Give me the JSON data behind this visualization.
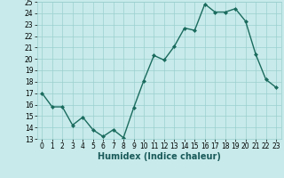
{
  "x": [
    0,
    1,
    2,
    3,
    4,
    5,
    6,
    7,
    8,
    9,
    10,
    11,
    12,
    13,
    14,
    15,
    16,
    17,
    18,
    19,
    20,
    21,
    22,
    23
  ],
  "y": [
    17.0,
    15.8,
    15.8,
    14.2,
    14.9,
    13.8,
    13.2,
    13.8,
    13.1,
    15.7,
    18.1,
    20.3,
    19.9,
    21.1,
    22.7,
    22.5,
    24.8,
    24.1,
    24.1,
    24.4,
    23.3,
    20.4,
    18.2,
    17.5
  ],
  "line_color": "#1a6b5e",
  "marker": "D",
  "marker_size": 2.0,
  "bg_color": "#c8eaea",
  "grid_color": "#9bcfcf",
  "xlabel": "Humidex (Indice chaleur)",
  "ylim": [
    13,
    25
  ],
  "xlim": [
    -0.5,
    23.5
  ],
  "yticks": [
    13,
    14,
    15,
    16,
    17,
    18,
    19,
    20,
    21,
    22,
    23,
    24,
    25
  ],
  "xticks": [
    0,
    1,
    2,
    3,
    4,
    5,
    6,
    7,
    8,
    9,
    10,
    11,
    12,
    13,
    14,
    15,
    16,
    17,
    18,
    19,
    20,
    21,
    22,
    23
  ],
  "tick_fontsize": 5.5,
  "xlabel_fontsize": 7.0,
  "linewidth": 1.0
}
